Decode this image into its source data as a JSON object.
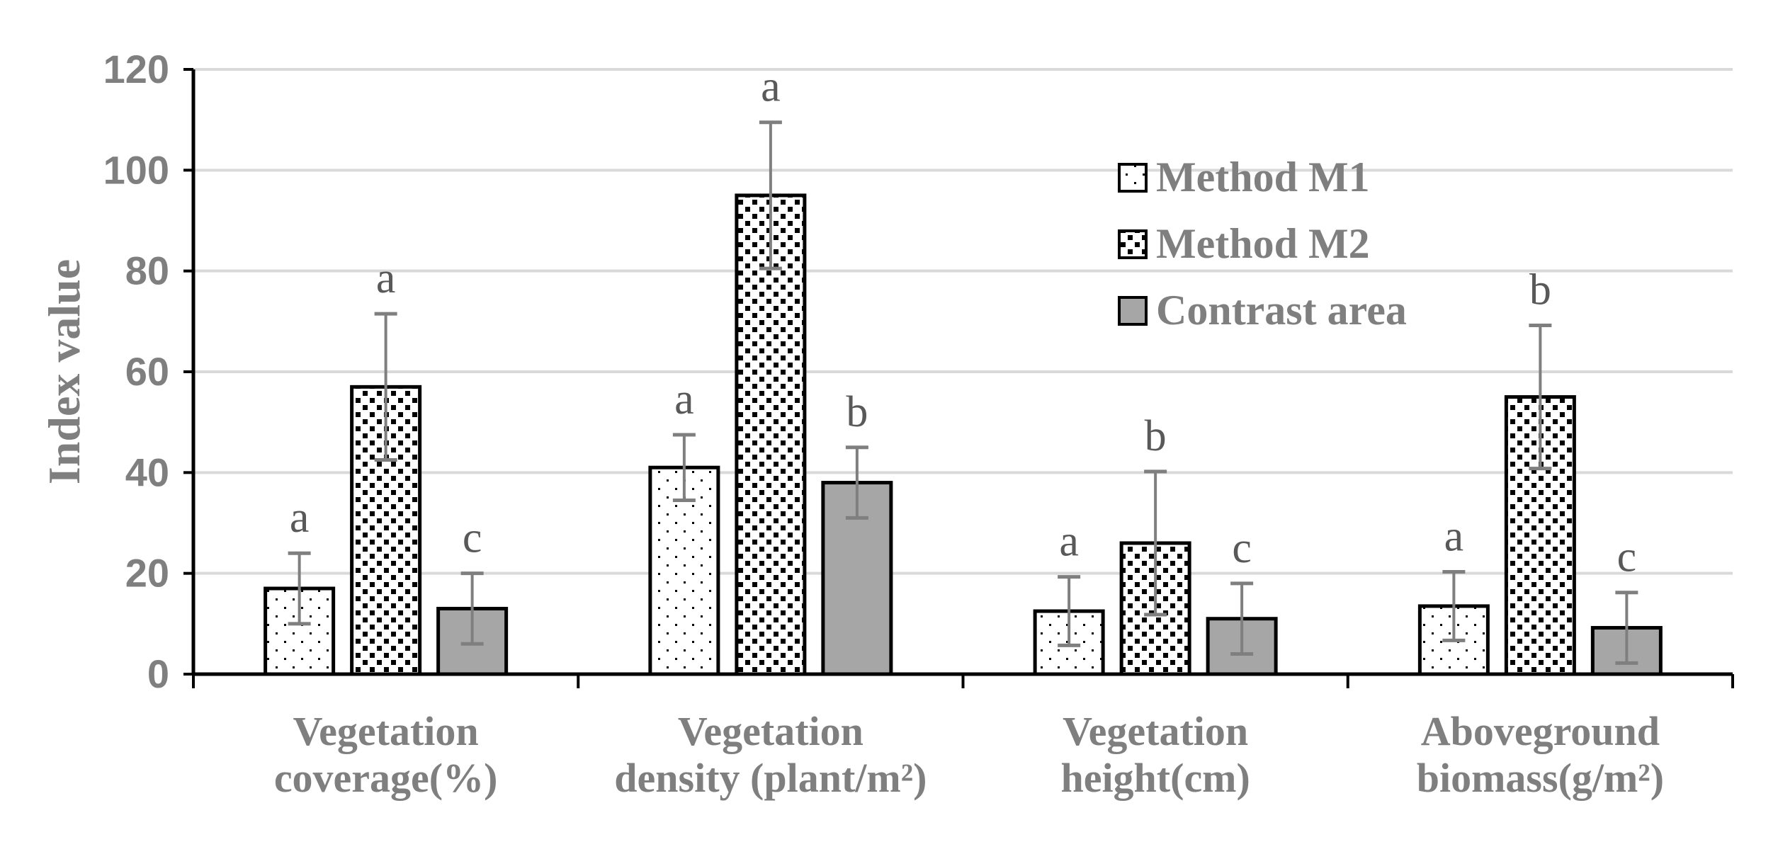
{
  "chart_data": {
    "type": "bar",
    "title": "",
    "xlabel": "",
    "ylabel": "Index value",
    "ylim": [
      0,
      120
    ],
    "yticks": [
      0,
      20,
      40,
      60,
      80,
      100,
      120
    ],
    "grid": true,
    "legend_position": "top-right",
    "categories": [
      [
        "Vegetation",
        "coverage(%)"
      ],
      [
        "Vegetation",
        "density (plant/m²)"
      ],
      [
        "Vegetation",
        "height(cm)"
      ],
      [
        "Aboveground",
        "biomass(g/m²)"
      ]
    ],
    "series": [
      {
        "name": "Method M1",
        "pattern": "dots",
        "values": [
          17,
          41,
          12.5,
          13.5
        ],
        "errors": [
          7,
          6.5,
          6.8,
          6.8
        ],
        "letters": [
          "a",
          "a",
          "a",
          "a"
        ]
      },
      {
        "name": "Method M2",
        "pattern": "checker",
        "values": [
          57,
          95,
          26,
          55
        ],
        "errors": [
          14.5,
          14.5,
          14.2,
          14.2
        ],
        "letters": [
          "a",
          "a",
          "b",
          "b"
        ]
      },
      {
        "name": "Contrast area",
        "pattern": "solid",
        "values": [
          13,
          38,
          11,
          9.2
        ],
        "errors": [
          7,
          7,
          7,
          7
        ],
        "letters": [
          "c",
          "b",
          "c",
          "c"
        ]
      }
    ],
    "colors": {
      "axis": "#000000",
      "grid": "#d9d9d9",
      "text": "#7f7f7f",
      "solid_fill": "#a6a6a6",
      "errorbar": "#7f7f7f"
    }
  }
}
